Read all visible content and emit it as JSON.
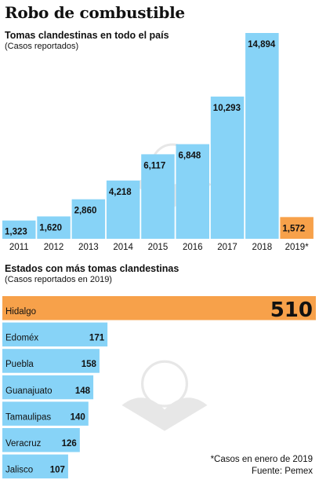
{
  "title": "Robo de combustible",
  "chart_data": [
    {
      "type": "bar",
      "title": "Tomas clandestinas en todo el país",
      "subtitle": "(Casos reportados)",
      "categories": [
        "2011",
        "2012",
        "2013",
        "2014",
        "2015",
        "2016",
        "2017",
        "2018",
        "2019*"
      ],
      "values": [
        1323,
        1620,
        2860,
        4218,
        6117,
        6848,
        10293,
        14894,
        1572
      ],
      "value_labels": [
        "1,323",
        "1,620",
        "2,860",
        "4,218",
        "6,117",
        "6,848",
        "10,293",
        "14,894",
        "1,572"
      ],
      "highlight_index": 8,
      "ylim": [
        0,
        14894
      ]
    },
    {
      "type": "bar",
      "orientation": "horizontal",
      "title": "Estados con más tomas clandestinas",
      "subtitle": "(Casos reportados en 2019)",
      "categories": [
        "Hidalgo",
        "Edoméx",
        "Puebla",
        "Guanajuato",
        "Tamaulipas",
        "Veracruz",
        "Jalisco"
      ],
      "values": [
        510,
        171,
        158,
        148,
        140,
        126,
        107
      ],
      "highlight_index": 0
    }
  ],
  "colors": {
    "bar": "#87d3f7",
    "highlight": "#f7a14a"
  },
  "footer": {
    "note": "*Casos en enero de 2019",
    "source": "Fuente: Pemex"
  }
}
